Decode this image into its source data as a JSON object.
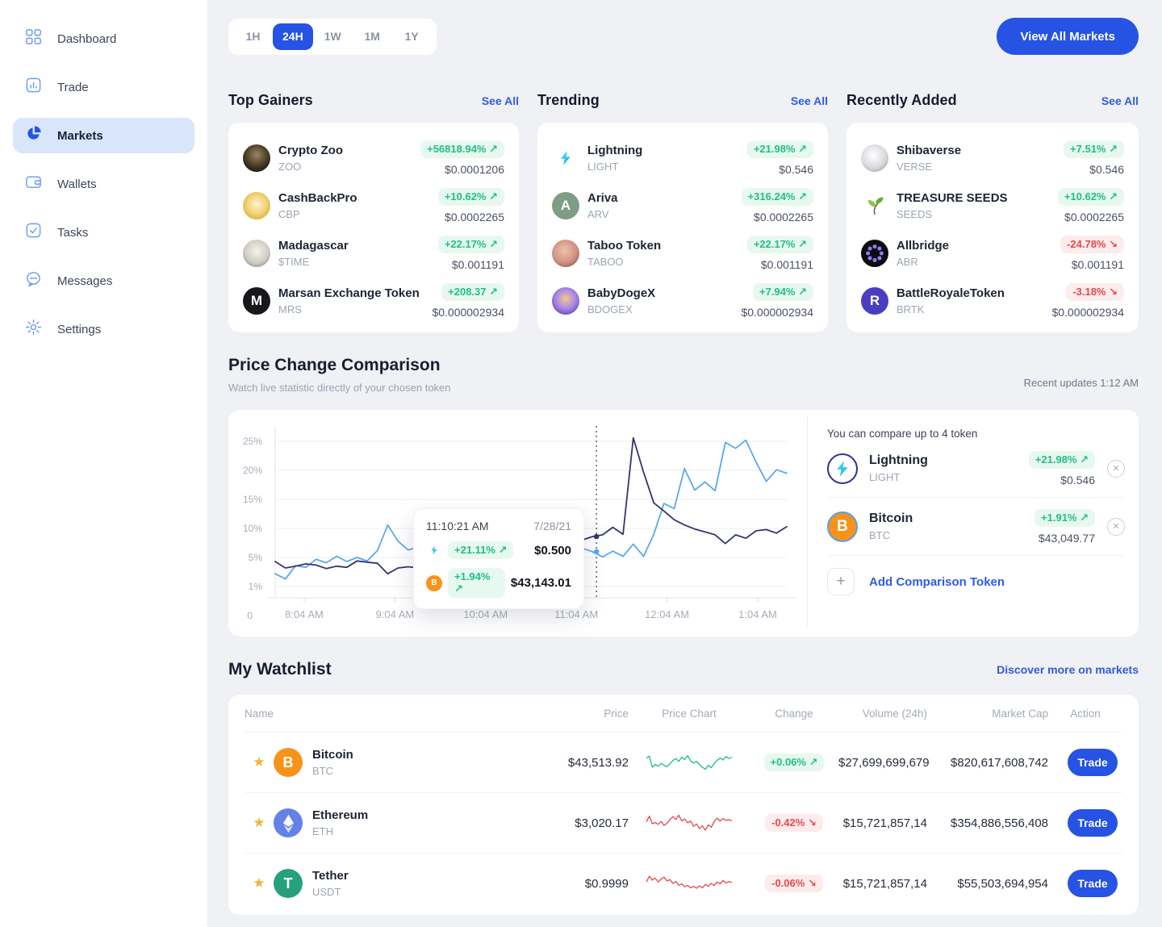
{
  "sidebar": {
    "items": [
      {
        "label": "Dashboard",
        "icon": "dashboard-icon",
        "active": false
      },
      {
        "label": "Trade",
        "icon": "trade-icon",
        "active": false
      },
      {
        "label": "Markets",
        "icon": "markets-icon",
        "active": true
      },
      {
        "label": "Wallets",
        "icon": "wallets-icon",
        "active": false
      },
      {
        "label": "Tasks",
        "icon": "tasks-icon",
        "active": false
      },
      {
        "label": "Messages",
        "icon": "messages-icon",
        "active": false
      },
      {
        "label": "Settings",
        "icon": "settings-icon",
        "active": false
      }
    ]
  },
  "topbar": {
    "time_filters": [
      "1H",
      "24H",
      "1W",
      "1M",
      "1Y"
    ],
    "active_filter": "24H",
    "view_all_label": "View All Markets"
  },
  "colors": {
    "accent_blue": "#2653E3",
    "green_text": "#1FBF83",
    "green_bg": "#E7F8F0",
    "red_text": "#E5484D",
    "red_bg": "#FDECEC",
    "line_lightning": "#5BA7EF",
    "line_bitcoin": "#33366F"
  },
  "sections": [
    {
      "title": "Top Gainers",
      "see_all": "See All",
      "tokens": [
        {
          "name": "Crypto Zoo",
          "symbol": "ZOO",
          "change": "+56818.94%",
          "direction": "up",
          "price": "$0.0001206",
          "icon": {
            "name": "cryptozoo-icon",
            "kind": "gradient",
            "bg": "radial-gradient(circle at 50% 38%, #9b8663 0%, #57492f 42%, #1c1812 80%)"
          }
        },
        {
          "name": "CashBackPro",
          "symbol": "CBP",
          "change": "+10.62%",
          "direction": "up",
          "price": "$0.0002265",
          "icon": {
            "name": "cashbackpro-icon",
            "kind": "gradient",
            "bg": "radial-gradient(circle at 50% 45%, #fdf3cf 0%, #f0d375 48%, #d9ac3a 82%)"
          }
        },
        {
          "name": "Madagascar",
          "symbol": "$TIME",
          "change": "+22.17%",
          "direction": "up",
          "price": "$0.001191",
          "icon": {
            "name": "madagascar-icon",
            "kind": "gradient",
            "bg": "radial-gradient(circle at 50% 42%, #f4f2ec 0%, #cfcdc4 55%, #8f8d83 88%)"
          }
        },
        {
          "name": "Marsan Exchange Token",
          "symbol": "MRS",
          "change": "+208.37",
          "direction": "up",
          "price": "$0.000002934",
          "icon": {
            "name": "marsan-icon",
            "kind": "letter",
            "glyph": "M",
            "bg": "#17181C",
            "fg": "#FFFFFF"
          }
        }
      ]
    },
    {
      "title": "Trending",
      "see_all": "See All",
      "tokens": [
        {
          "name": "Lightning",
          "symbol": "LIGHT",
          "change": "+21.98%",
          "direction": "up",
          "price": "$0.546",
          "icon": {
            "name": "lightning-icon",
            "kind": "bolt",
            "bg": "#FFFFFF"
          }
        },
        {
          "name": "Ariva",
          "symbol": "ARV",
          "change": "+316.24%",
          "direction": "up",
          "price": "$0.0002265",
          "icon": {
            "name": "ariva-icon",
            "kind": "letter",
            "glyph": "A",
            "bg": "#7E9D85",
            "fg": "#FFFFFF"
          }
        },
        {
          "name": "Taboo Token",
          "symbol": "TABOO",
          "change": "+22.17%",
          "direction": "up",
          "price": "$0.001191",
          "icon": {
            "name": "taboo-icon",
            "kind": "gradient",
            "bg": "radial-gradient(circle at 45% 40%, #eec2ad 0%, #cf9181 55%, #7e4b42 92%)"
          }
        },
        {
          "name": "BabyDogeX",
          "symbol": "BDOGEX",
          "change": "+7.94%",
          "direction": "up",
          "price": "$0.000002934",
          "icon": {
            "name": "babydogex-icon",
            "kind": "gradient",
            "bg": "radial-gradient(circle at 50% 42%, #f3c98e 0%, #a886e8 48%, #5b3fae 88%)"
          }
        }
      ]
    },
    {
      "title": "Recently Added",
      "see_all": "See All",
      "tokens": [
        {
          "name": "Shibaverse",
          "symbol": "VERSE",
          "change": "+7.51%",
          "direction": "up",
          "price": "$0.546",
          "icon": {
            "name": "shibaverse-icon",
            "kind": "gradient",
            "bg": "radial-gradient(circle at 45% 40%, #ffffff 0%, #d9dade 55%, #9a9ba2 92%)"
          }
        },
        {
          "name": "TREASURE SEEDS",
          "symbol": "SEEDS",
          "change": "+10.62%",
          "direction": "up",
          "price": "$0.0002265",
          "icon": {
            "name": "treasureseeds-icon",
            "kind": "leaf",
            "bg": "#FFFFFF"
          }
        },
        {
          "name": "Allbridge",
          "symbol": "ABR",
          "change": "-24.78%",
          "direction": "down",
          "price": "$0.001191",
          "icon": {
            "name": "allbridge-icon",
            "kind": "dots",
            "bg": "#0B0B10"
          }
        },
        {
          "name": "BattleRoyaleToken",
          "symbol": "BRTK",
          "change": "-3.18%",
          "direction": "down",
          "price": "$0.000002934",
          "icon": {
            "name": "battleroyale-icon",
            "kind": "letter",
            "glyph": "R",
            "bg": "#4A3EC0",
            "fg": "#FFFFFF"
          }
        }
      ]
    }
  ],
  "comparison": {
    "title": "Price Change Comparison",
    "subtitle": "Watch live statistic directly of your chosen token",
    "updated": "Recent updates 1:12 AM",
    "hint": "You can compare up to 4 token",
    "add_label": "Add Comparison Token",
    "tokens": [
      {
        "name": "Lightning",
        "symbol": "LIGHT",
        "change": "+21.98%",
        "direction": "up",
        "price": "$0.546",
        "icon": {
          "name": "lightning-compare-icon",
          "kind": "bolt",
          "bg": "#FFFFFF",
          "ring": "#2E3192"
        }
      },
      {
        "name": "Bitcoin",
        "symbol": "BTC",
        "change": "+1.91%",
        "direction": "up",
        "price": "$43,049.77",
        "icon": {
          "name": "bitcoin-compare-icon",
          "kind": "letter",
          "glyph": "B",
          "bg": "#F7931A",
          "fg": "#FFFFFF",
          "ring": "#57A0E8"
        }
      }
    ],
    "tooltip": {
      "time": "11:10:21 AM",
      "date": "7/28/21",
      "rows": [
        {
          "token": "Lightning",
          "change": "+21.11%",
          "direction": "up",
          "value": "$0.500"
        },
        {
          "token": "Bitcoin",
          "change": "+1.94%",
          "direction": "up",
          "value": "$43,143.01"
        }
      ]
    }
  },
  "chart_data": {
    "type": "line",
    "title": "Price Change Comparison",
    "x_ticks": [
      "8:04 AM",
      "9:04 AM",
      "10:04 AM",
      "11:04 AM",
      "12:04 AM",
      "1:04 AM"
    ],
    "y_ticks": [
      25,
      20,
      15,
      10,
      5,
      1
    ],
    "y_tick_suffix": "%",
    "y_origin_label": "0",
    "ymax": 27,
    "grid": true,
    "series": [
      {
        "name": "Lightning",
        "color": "#5BA7EF",
        "values": [
          2.2,
          1.3,
          3.6,
          3.3,
          4.7,
          4.1,
          5.2,
          4.3,
          5.0,
          4.4,
          6.2,
          10.6,
          7.8,
          6.3,
          6.8,
          4.8,
          5.4,
          5.0,
          5.6,
          5.2,
          5.8,
          5.4,
          6.0,
          5.5,
          6.1,
          5.6,
          6.2,
          5.8,
          6.4,
          6.0,
          6.6,
          6.0,
          5.1,
          6.1,
          5.2,
          7.3,
          5.2,
          9.0,
          14.3,
          13.4,
          20.3,
          16.6,
          18.0,
          16.5,
          24.8,
          23.8,
          25.2,
          21.4,
          18.1,
          20.1,
          19.5
        ]
      },
      {
        "name": "Bitcoin",
        "color": "#33366F",
        "values": [
          4.3,
          3.2,
          3.5,
          3.9,
          3.7,
          3.1,
          3.5,
          3.3,
          4.4,
          4.2,
          4.0,
          2.2,
          3.2,
          3.4,
          3.2,
          3.0,
          3.2,
          3.1,
          3.0,
          3.1,
          3.2,
          3.3,
          3.5,
          4.0,
          4.5,
          5.0,
          5.5,
          6.0,
          6.6,
          7.2,
          8.0,
          8.6,
          8.9,
          10.2,
          9.0,
          25.6,
          19.7,
          14.4,
          13.0,
          11.5,
          10.6,
          9.9,
          9.4,
          8.9,
          7.4,
          8.9,
          8.3,
          9.6,
          9.8,
          9.2,
          10.3
        ]
      }
    ],
    "cursor": {
      "x_frac": 0.628,
      "dots": [
        {
          "series": "Bitcoin",
          "value": 8.6
        },
        {
          "series": "Lightning",
          "value": 6.0
        }
      ]
    }
  },
  "watchlist": {
    "title": "My Watchlist",
    "link": "Discover more on markets",
    "columns": [
      {
        "label": "Name",
        "align": "left"
      },
      {
        "label": "Price",
        "align": "right"
      },
      {
        "label": "Price Chart",
        "align": "center"
      },
      {
        "label": "Change",
        "align": "center"
      },
      {
        "label": "Volume (24h)",
        "align": "right"
      },
      {
        "label": "Market Cap",
        "align": "right"
      },
      {
        "label": "Action",
        "align": "center"
      }
    ],
    "rows": [
      {
        "name": "Bitcoin",
        "symbol": "BTC",
        "price": "$43,513.92",
        "change": "+0.06%",
        "direction": "up",
        "volume": "$27,699,699,679",
        "market_cap": "$820,617,608,742",
        "action": "Trade",
        "icon": {
          "name": "bitcoin-icon",
          "kind": "letter",
          "glyph": "B",
          "bg": "#F7931A",
          "fg": "#FFFFFF"
        },
        "spark_color": "#17BF84",
        "spark": [
          6.8,
          7.6,
          3.0,
          4.2,
          3.4,
          4.6,
          3.8,
          3.2,
          4.4,
          5.8,
          6.6,
          5.4,
          7.2,
          6.2,
          7.8,
          5.6,
          4.8,
          5.4,
          4.2,
          3.0,
          2.2,
          3.8,
          2.8,
          4.6,
          5.8,
          6.8,
          6.0,
          7.4,
          6.6,
          7.2
        ]
      },
      {
        "name": "Ethereum",
        "symbol": "ETH",
        "price": "$3,020.17",
        "change": "-0.42%",
        "direction": "down",
        "volume": "$15,721,857,14",
        "market_cap": "$354,886,556,408",
        "action": "Trade",
        "icon": {
          "name": "ethereum-icon",
          "kind": "eth",
          "bg": "#6481E7"
        },
        "spark_color": "#E2494E",
        "spark": [
          5.4,
          7.8,
          4.6,
          5.2,
          4.4,
          5.6,
          4.0,
          4.8,
          6.4,
          7.6,
          6.4,
          8.2,
          5.8,
          6.6,
          5.0,
          5.8,
          3.6,
          4.6,
          2.6,
          3.8,
          2.0,
          4.2,
          3.2,
          5.6,
          7.0,
          5.8,
          6.8,
          6.0,
          6.4,
          5.8
        ]
      },
      {
        "name": "Tether",
        "symbol": "USDT",
        "price": "$0.9999",
        "change": "-0.06%",
        "direction": "down",
        "volume": "$15,721,857,14",
        "market_cap": "$55,503,694,954",
        "action": "Trade",
        "icon": {
          "name": "tether-icon",
          "kind": "letter",
          "glyph": "T",
          "bg": "#26A17B",
          "fg": "#FFFFFF"
        },
        "spark_color": "#E2494E",
        "spark": [
          5.6,
          8.0,
          6.4,
          7.2,
          5.6,
          6.8,
          7.6,
          6.0,
          6.6,
          5.0,
          5.8,
          4.2,
          4.8,
          3.6,
          4.2,
          3.2,
          3.8,
          3.0,
          4.0,
          3.2,
          4.6,
          3.8,
          5.0,
          4.2,
          5.6,
          4.8,
          6.2,
          5.2,
          5.8,
          5.4
        ]
      }
    ]
  }
}
